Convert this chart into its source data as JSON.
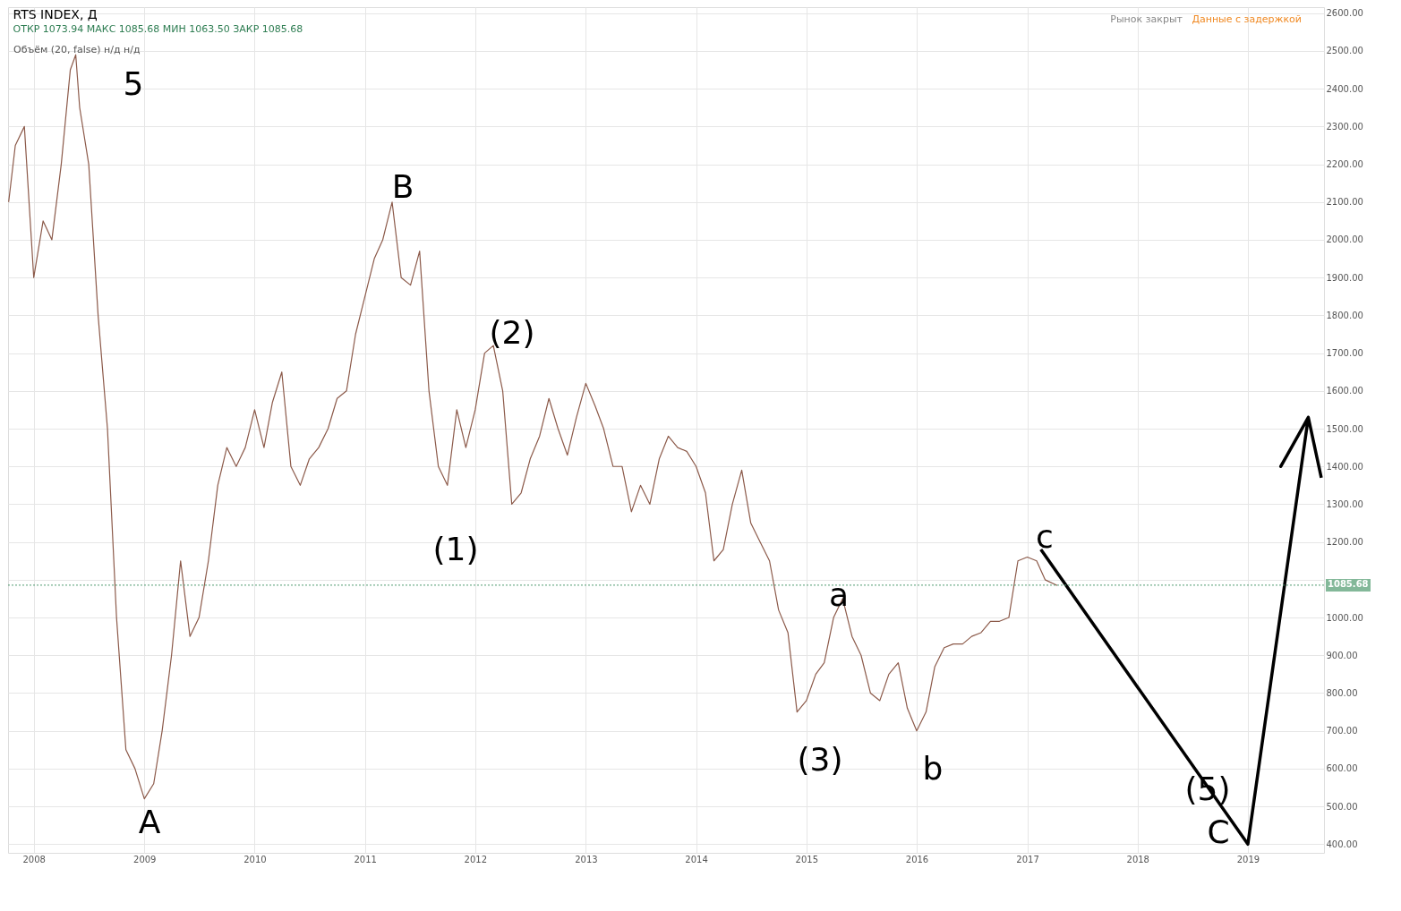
{
  "chart_data": {
    "type": "line",
    "title": "RTS INDEX, Д",
    "subtitle": "ОТКР 1073.94 МАКС 1085.68 МИН 1063.50 ЗАКР 1085.68",
    "series": [
      {
        "name": null,
        "color": "#8c5a4a",
        "x": [
          "2007-10-10",
          "2007-11-01",
          "2007-12-01",
          "2008-01-01",
          "2008-02-01",
          "2008-03-01",
          "2008-04-01",
          "2008-05-01",
          "2008-05-19",
          "2008-06-01",
          "2008-07-01",
          "2008-08-01",
          "2008-09-01",
          "2008-10-01",
          "2008-11-01",
          "2008-12-01",
          "2009-01-01",
          "2009-02-01",
          "2009-03-01",
          "2009-04-01",
          "2009-05-01",
          "2009-06-01",
          "2009-07-01",
          "2009-08-01",
          "2009-09-01",
          "2009-10-01",
          "2009-11-01",
          "2009-12-01",
          "2010-01-01",
          "2010-02-01",
          "2010-03-01",
          "2010-04-01",
          "2010-05-01",
          "2010-06-01",
          "2010-07-01",
          "2010-08-01",
          "2010-09-01",
          "2010-10-01",
          "2010-11-01",
          "2010-12-01",
          "2011-01-01",
          "2011-02-01",
          "2011-03-01",
          "2011-04-01",
          "2011-05-01",
          "2011-06-01",
          "2011-07-01",
          "2011-08-01",
          "2011-09-01",
          "2011-10-01",
          "2011-11-01",
          "2011-12-01",
          "2012-01-01",
          "2012-02-01",
          "2012-03-01",
          "2012-04-01",
          "2012-05-01",
          "2012-06-01",
          "2012-07-01",
          "2012-08-01",
          "2012-09-01",
          "2012-10-01",
          "2012-11-01",
          "2012-12-01",
          "2013-01-01",
          "2013-02-01",
          "2013-03-01",
          "2013-04-01",
          "2013-05-01",
          "2013-06-01",
          "2013-07-01",
          "2013-08-01",
          "2013-09-01",
          "2013-10-01",
          "2013-11-01",
          "2013-12-01",
          "2014-01-01",
          "2014-02-01",
          "2014-03-01",
          "2014-04-01",
          "2014-05-01",
          "2014-06-01",
          "2014-07-01",
          "2014-08-01",
          "2014-09-01",
          "2014-10-01",
          "2014-11-01",
          "2014-12-01",
          "2015-01-01",
          "2015-02-01",
          "2015-03-01",
          "2015-04-01",
          "2015-05-01",
          "2015-06-01",
          "2015-07-01",
          "2015-08-01",
          "2015-09-01",
          "2015-10-01",
          "2015-11-01",
          "2015-12-01",
          "2016-01-01",
          "2016-02-01",
          "2016-03-01",
          "2016-04-01",
          "2016-05-01",
          "2016-06-01",
          "2016-07-01",
          "2016-08-01",
          "2016-09-01",
          "2016-10-01",
          "2016-11-01",
          "2016-12-01",
          "2017-01-01",
          "2017-02-01",
          "2017-03-01",
          "2017-04-10"
        ],
        "values": [
          2100,
          2250,
          2300,
          1900,
          2050,
          2000,
          2200,
          2450,
          2490,
          2350,
          2200,
          1800,
          1500,
          1000,
          650,
          600,
          520,
          560,
          700,
          900,
          1150,
          950,
          1000,
          1150,
          1350,
          1450,
          1400,
          1450,
          1550,
          1450,
          1570,
          1650,
          1400,
          1350,
          1420,
          1450,
          1500,
          1580,
          1600,
          1750,
          1850,
          1950,
          2000,
          2100,
          1900,
          1880,
          1970,
          1600,
          1400,
          1350,
          1550,
          1450,
          1550,
          1700,
          1720,
          1600,
          1300,
          1330,
          1420,
          1480,
          1580,
          1500,
          1430,
          1530,
          1620,
          1560,
          1500,
          1400,
          1400,
          1280,
          1350,
          1300,
          1420,
          1480,
          1450,
          1440,
          1400,
          1330,
          1150,
          1180,
          1300,
          1390,
          1250,
          1200,
          1150,
          1020,
          960,
          750,
          780,
          850,
          880,
          1000,
          1050,
          950,
          900,
          800,
          780,
          850,
          880,
          760,
          700,
          750,
          870,
          920,
          930,
          930,
          950,
          960,
          990,
          990,
          1000,
          1150,
          1160,
          1150,
          1100,
          1085
        ]
      },
      {
        "name": null,
        "color": "#000000",
        "x": [
          "2017-02-15",
          "2019-01-01",
          "2019-07-20",
          "2019-04-20",
          "2019-07-20",
          "2019-09-01"
        ],
        "values": [
          1180,
          400,
          1530,
          1400,
          1530,
          1370
        ]
      }
    ],
    "xlim": [
      "2007-10-08",
      "2019-09-10"
    ],
    "xticks": [
      "2008",
      "2009",
      "2010",
      "2011",
      "2012",
      "2013",
      "2014",
      "2015",
      "2016",
      "2017",
      "2018",
      "2019"
    ],
    "ylim": [
      377,
      2616
    ],
    "yticks": [
      {
        "value": 400,
        "label": "400.00"
      },
      {
        "value": 500,
        "label": "500.00"
      },
      {
        "value": 600,
        "label": "600.00"
      },
      {
        "value": 700,
        "label": "700.00"
      },
      {
        "value": 800,
        "label": "800.00"
      },
      {
        "value": 900,
        "label": "900.00"
      },
      {
        "value": 1000,
        "label": "1000.00"
      },
      {
        "value": 1100,
        "label": null
      },
      {
        "value": 1200,
        "label": "1200.00"
      },
      {
        "value": 1300,
        "label": "1300.00"
      },
      {
        "value": 1400,
        "label": "1400.00"
      },
      {
        "value": 1500,
        "label": "1500.00"
      },
      {
        "value": 1600,
        "label": "1600.00"
      },
      {
        "value": 1700,
        "label": "1700.00"
      },
      {
        "value": 1800,
        "label": "1800.00"
      },
      {
        "value": 1900,
        "label": "1900.00"
      },
      {
        "value": 2000,
        "label": "2000.00"
      },
      {
        "value": 2100,
        "label": "2100.00"
      },
      {
        "value": 2200,
        "label": "2200.00"
      },
      {
        "value": 2300,
        "label": "2300.00"
      },
      {
        "value": 2400,
        "label": "2400.00"
      },
      {
        "value": 2500,
        "label": "2500.00"
      },
      {
        "value": 2600,
        "label": "2600.00"
      }
    ],
    "ref_lines": [
      {
        "axis": "y",
        "value": 1085.68,
        "label": "1085.68",
        "color": "#4f9a6e",
        "line_style": "dotted"
      }
    ],
    "annotations": [
      "5",
      "A",
      "B",
      "(1)",
      "(2)",
      "(3)",
      "a",
      "b",
      "c",
      "(5)",
      "C",
      "Объём (20, false) н/д н/д",
      "Рынок закрыт",
      "Данные с задержкой"
    ],
    "grid": true,
    "marker": "none",
    "line_style": "solid"
  }
}
